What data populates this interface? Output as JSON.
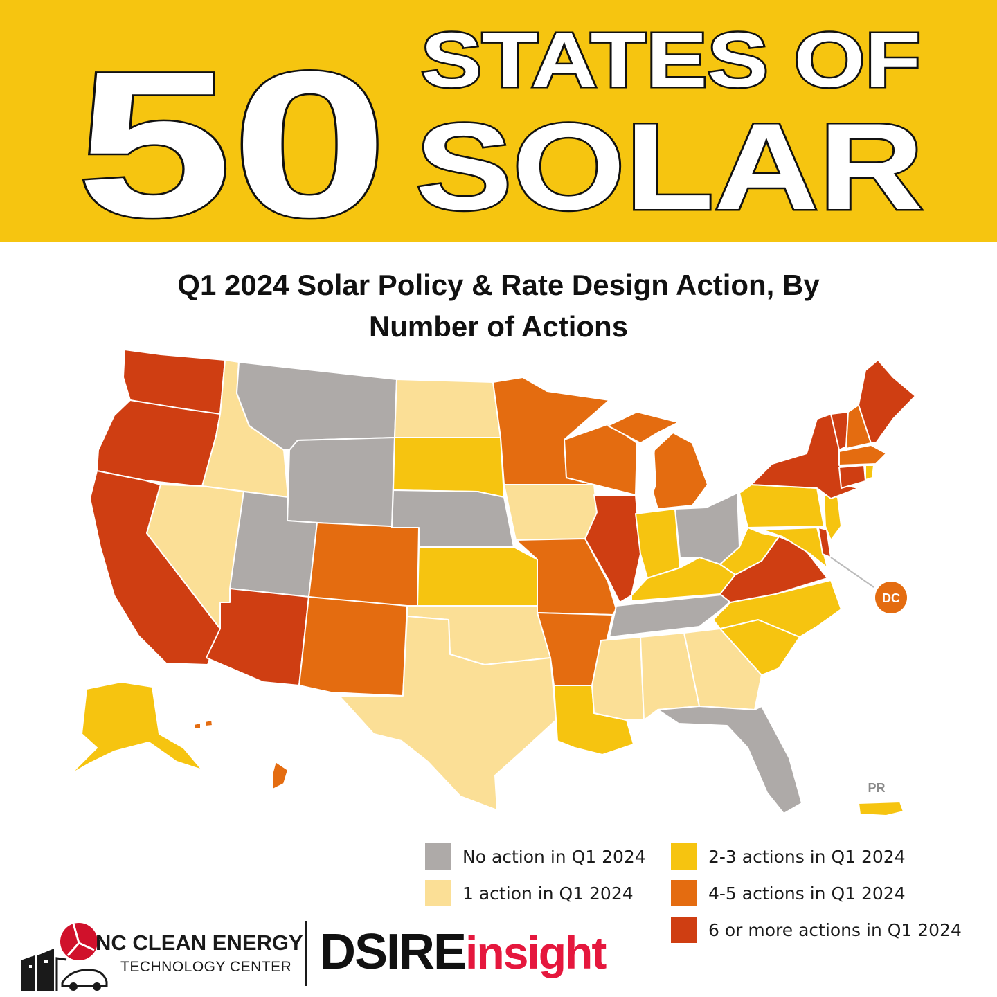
{
  "banner": {
    "number": "50",
    "line1": "STATES OF",
    "line2": "SOLAR"
  },
  "subtitle": {
    "line1": "Q1 2024 Solar Policy & Rate Design Action, By",
    "line2": "Number of Actions"
  },
  "colors": {
    "banner": "#f6c510",
    "none": "#aeaaa8",
    "one": "#fbdf96",
    "two_three": "#f6c410",
    "four_five": "#e46c10",
    "six_plus": "#cf3e12"
  },
  "map_labels": {
    "dc": "DC",
    "pr": "PR"
  },
  "legend": {
    "none": "No action in Q1 2024",
    "one": "1 action in Q1 2024",
    "two_three": "2-3 actions in Q1 2024",
    "four_five": "4-5 actions in Q1 2024",
    "six_plus": "6 or more actions in Q1 2024"
  },
  "footer": {
    "nc_title": "NC CLEAN ENERGY",
    "nc_subtitle": "TECHNOLOGY CENTER",
    "dsire_main": "DSIRE",
    "dsire_accent": "insight"
  }
}
